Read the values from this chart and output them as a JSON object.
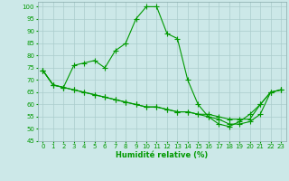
{
  "xlabel": "Humidité relative (%)",
  "bg_color": "#cce8e8",
  "grid_color": "#aacccc",
  "line_color": "#009900",
  "line1_x": [
    0,
    1,
    2,
    3,
    4,
    5,
    6,
    7,
    8,
    9,
    10,
    11,
    12,
    13,
    14,
    15,
    16,
    17,
    18,
    19,
    20,
    21,
    22,
    23
  ],
  "line1_y": [
    74,
    68,
    67,
    76,
    77,
    78,
    75,
    82,
    85,
    95,
    100,
    100,
    89,
    87,
    70,
    60,
    55,
    52,
    51,
    53,
    56,
    60,
    65,
    66
  ],
  "line2_x": [
    0,
    1,
    2,
    3,
    4,
    5,
    6,
    7,
    8,
    9,
    10,
    11,
    12,
    13,
    14,
    15,
    16,
    17,
    18,
    19,
    20,
    21,
    22,
    23
  ],
  "line2_y": [
    74,
    68,
    67,
    66,
    65,
    64,
    63,
    62,
    61,
    60,
    59,
    59,
    58,
    57,
    57,
    56,
    56,
    55,
    54,
    54,
    54,
    60,
    65,
    66
  ],
  "line3_x": [
    0,
    1,
    2,
    3,
    4,
    5,
    6,
    7,
    8,
    9,
    10,
    11,
    12,
    13,
    14,
    15,
    16,
    17,
    18,
    19,
    20,
    21,
    22,
    23
  ],
  "line3_y": [
    74,
    68,
    67,
    66,
    65,
    64,
    63,
    62,
    61,
    60,
    59,
    59,
    58,
    57,
    57,
    56,
    55,
    54,
    52,
    52,
    53,
    56,
    65,
    66
  ],
  "ylim": [
    45,
    102
  ],
  "xlim": [
    -0.5,
    23.5
  ],
  "yticks": [
    45,
    50,
    55,
    60,
    65,
    70,
    75,
    80,
    85,
    90,
    95,
    100
  ],
  "xticks": [
    0,
    1,
    2,
    3,
    4,
    5,
    6,
    7,
    8,
    9,
    10,
    11,
    12,
    13,
    14,
    15,
    16,
    17,
    18,
    19,
    20,
    21,
    22,
    23
  ],
  "marker": "+",
  "markersize": 4,
  "linewidth": 0.8,
  "tick_fontsize": 5.0,
  "xlabel_fontsize": 6.0
}
